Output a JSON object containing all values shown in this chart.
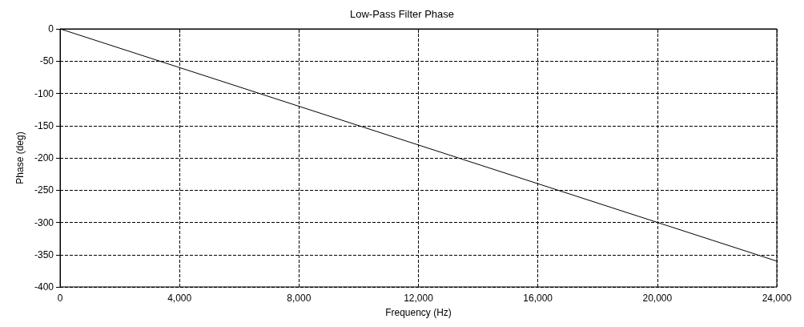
{
  "chart_data": {
    "type": "line",
    "title": "Low-Pass Filter Phase",
    "xlabel": "Frequency (Hz)",
    "ylabel": "Phase (deg)",
    "x": [
      0,
      4000,
      8000,
      12000,
      16000,
      20000,
      24000
    ],
    "series": [
      {
        "color": "#000000",
        "values": [
          0,
          -60,
          -120,
          -180,
          -240,
          -300,
          -360
        ]
      }
    ],
    "xlim": [
      0,
      24000
    ],
    "xticks": [
      0,
      {
        "value": 4000,
        "label": "4,000"
      },
      {
        "value": 8000,
        "label": "8,000"
      },
      {
        "value": 12000,
        "label": "12,000"
      },
      {
        "value": 16000,
        "label": "16,000"
      },
      {
        "value": 20000,
        "label": "20,000"
      },
      {
        "value": 24000,
        "label": "24,000"
      }
    ],
    "ylim": [
      -400,
      0
    ],
    "yticks": [
      -400,
      -350,
      -300,
      -250,
      -200,
      -150,
      -100,
      -50,
      0
    ],
    "grid": true,
    "marker": "none",
    "line_style": "solid"
  }
}
